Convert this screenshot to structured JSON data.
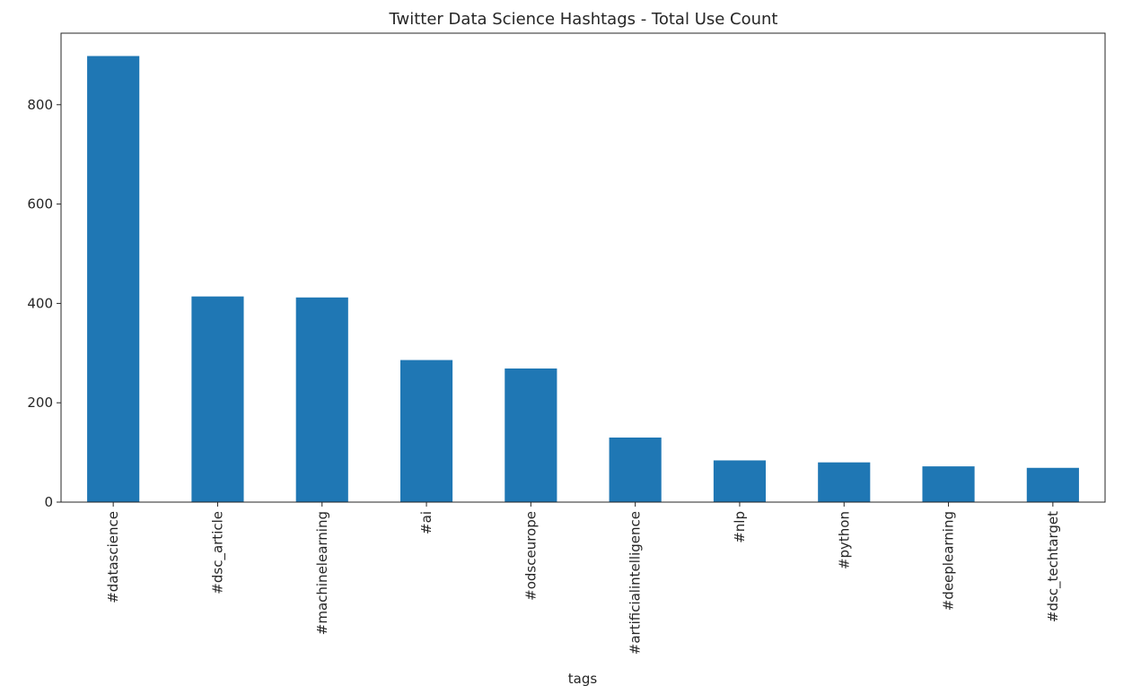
{
  "chart_data": {
    "type": "bar",
    "title": "Twitter Data Science Hashtags - Total Use Count",
    "xlabel": "tags",
    "ylabel": "",
    "categories": [
      "#datascience",
      "#dsc_article",
      "#machinelearning",
      "#ai",
      "#odsceurope",
      "#artificialintelligence",
      "#nlp",
      "#python",
      "#deeplearning",
      "#dsc_techtarget"
    ],
    "values": [
      898,
      414,
      412,
      286,
      269,
      130,
      84,
      80,
      72,
      69
    ],
    "ylim": [
      0,
      944
    ],
    "yticks": [
      0,
      200,
      400,
      600,
      800
    ],
    "grid": false,
    "legend": "none",
    "colors": {
      "bar": "#1f77b4",
      "axes": "#262626",
      "text": "#262626"
    }
  }
}
